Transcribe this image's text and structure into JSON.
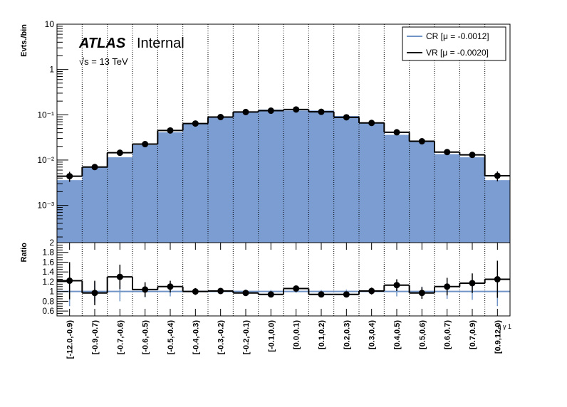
{
  "chart_data": [
    {
      "type": "bar",
      "panel": "main",
      "ylabel": "Evts./bin",
      "yscale": "log",
      "ylim": [
        0.00015,
        10
      ],
      "yticks": [
        {
          "label": "10",
          "value": 10
        },
        {
          "label": "1",
          "value": 1
        },
        {
          "label": "10⁻¹",
          "value": 0.1
        },
        {
          "label": "10⁻²",
          "value": 0.01
        },
        {
          "label": "10⁻³",
          "value": 0.001
        }
      ],
      "grid": "vertical dotted lines at bin edges",
      "legend_position": "top-right",
      "categories": [
        "[-12.0,-0.9)",
        "[-0.9,-0.7)",
        "[-0.7,-0.6)",
        "[-0.6,-0.5)",
        "[-0.5,-0.4)",
        "[-0.4,-0.3)",
        "[-0.3,-0.2)",
        "[-0.2,-0.1)",
        "[-0.1,0.0)",
        "[0.0,0.1)",
        "[0.1,0.2)",
        "[0.2,0.3)",
        "[0.3,0.4)",
        "[0.4,0.5)",
        "[0.5,0.6)",
        "[0.6,0.7)",
        "[0.7,0.9)",
        "[0.9,12.0)"
      ],
      "series": [
        {
          "name": "CR [μ = -0.0012]",
          "style": "filled histogram",
          "color": "#7b9dd2",
          "legend_color": "#6f93c5",
          "values": [
            0.0036,
            0.0072,
            0.0115,
            0.0215,
            0.041,
            0.064,
            0.088,
            0.116,
            0.13,
            0.124,
            0.124,
            0.094,
            0.066,
            0.036,
            0.027,
            0.0135,
            0.0115,
            0.0036
          ]
        },
        {
          "name": "VR [μ = -0.0020]",
          "style": "black step line with points and error bars",
          "color": "#000000",
          "values": [
            0.0044,
            0.007,
            0.0145,
            0.0225,
            0.045,
            0.064,
            0.089,
            0.115,
            0.123,
            0.131,
            0.116,
            0.088,
            0.066,
            0.041,
            0.026,
            0.015,
            0.013,
            0.0045
          ],
          "errors_low": [
            0.0011,
            0.001,
            0.0015,
            0.0015,
            0.0025,
            0.003,
            0.004,
            0.004,
            0.004,
            0.004,
            0.004,
            0.004,
            0.003,
            0.0025,
            0.0018,
            0.0013,
            0.0012,
            0.0011
          ],
          "errors_high": [
            0.0011,
            0.001,
            0.0015,
            0.0015,
            0.0025,
            0.003,
            0.004,
            0.004,
            0.004,
            0.004,
            0.004,
            0.004,
            0.003,
            0.0025,
            0.0018,
            0.0013,
            0.0012,
            0.0011
          ]
        }
      ],
      "annotations": {
        "experiment": "ATLAS",
        "status": "Internal",
        "energy": "√s = 13 TeV"
      }
    },
    {
      "type": "line",
      "panel": "ratio",
      "ylabel": "Ratio",
      "ylim": [
        0.5,
        2.0
      ],
      "yticks": [
        {
          "label": "2",
          "value": 2.0
        },
        {
          "label": "1.8",
          "value": 1.8
        },
        {
          "label": "1.6",
          "value": 1.6
        },
        {
          "label": "1.4",
          "value": 1.4
        },
        {
          "label": "1.2",
          "value": 1.2
        },
        {
          "label": "1",
          "value": 1.0
        },
        {
          "label": "0.8",
          "value": 0.8
        },
        {
          "label": "0.6",
          "value": 0.6
        }
      ],
      "reference_line": 1.0,
      "xlabel": "η γ 1",
      "categories": [
        "[-12.0,-0.9)",
        "[-0.9,-0.7)",
        "[-0.7,-0.6)",
        "[-0.6,-0.5)",
        "[-0.5,-0.4)",
        "[-0.4,-0.3)",
        "[-0.3,-0.2)",
        "[-0.2,-0.1)",
        "[-0.1,0.0)",
        "[0.0,0.1)",
        "[0.1,0.2)",
        "[0.2,0.3)",
        "[0.3,0.4)",
        "[0.4,0.5)",
        "[0.5,0.6)",
        "[0.6,0.7)",
        "[0.7,0.9)",
        "[0.9,12.0)"
      ],
      "series": [
        {
          "name": "VR/CR",
          "color": "#000000",
          "values": [
            1.22,
            0.97,
            1.3,
            1.04,
            1.1,
            1.0,
            1.01,
            0.97,
            0.94,
            1.06,
            0.94,
            0.94,
            1.01,
            1.13,
            0.97,
            1.1,
            1.17,
            1.25
          ],
          "errors": [
            0.38,
            0.25,
            0.25,
            0.15,
            0.12,
            0.07,
            0.06,
            0.05,
            0.04,
            0.04,
            0.04,
            0.05,
            0.07,
            0.12,
            0.12,
            0.18,
            0.2,
            0.38
          ]
        }
      ],
      "reference_error_band": [
        0.3,
        0.2,
        0.2,
        0.12,
        0.1,
        0.06,
        0.05,
        0.04,
        0.03,
        0.03,
        0.03,
        0.04,
        0.06,
        0.1,
        0.1,
        0.15,
        0.17,
        0.3
      ]
    }
  ]
}
